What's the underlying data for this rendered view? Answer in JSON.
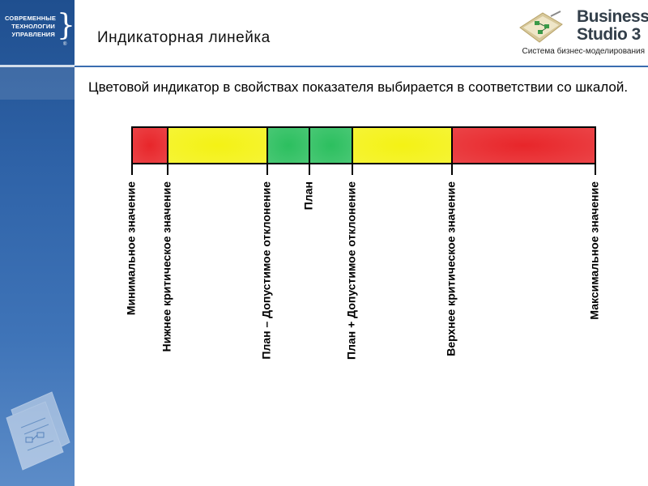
{
  "sidebar": {
    "company_logo_lines": [
      "СОВРЕМЕННЫЕ",
      "ТЕХНОЛОГИИ",
      "УПРАВЛЕНИЯ"
    ],
    "company_logo_reg": "®"
  },
  "header": {
    "title": "Индикаторная линейка",
    "brand": {
      "name_line1": "Business",
      "name_line2": "Studio 3",
      "tagline": "Система бизнес-моделирования"
    }
  },
  "body": {
    "description": "Цветовой индикатор в свойствах показателя выбирается в соответствии со шкалой."
  },
  "scale": {
    "colors": {
      "red": "#e8262a",
      "yellow": "#f4f215",
      "green": "#2cbf5f"
    },
    "segments": [
      {
        "color": "red"
      },
      {
        "color": "yellow"
      },
      {
        "color": "green"
      },
      {
        "color": "green"
      },
      {
        "color": "yellow"
      },
      {
        "color": "red"
      }
    ],
    "markers": [
      "Минимальное значение",
      "Нижнее критическое значение",
      "План – Допустимое отклонение",
      "План",
      "План + Допустимое отклонение",
      "Верхнее критическое значение",
      "Максимальное значение"
    ]
  }
}
